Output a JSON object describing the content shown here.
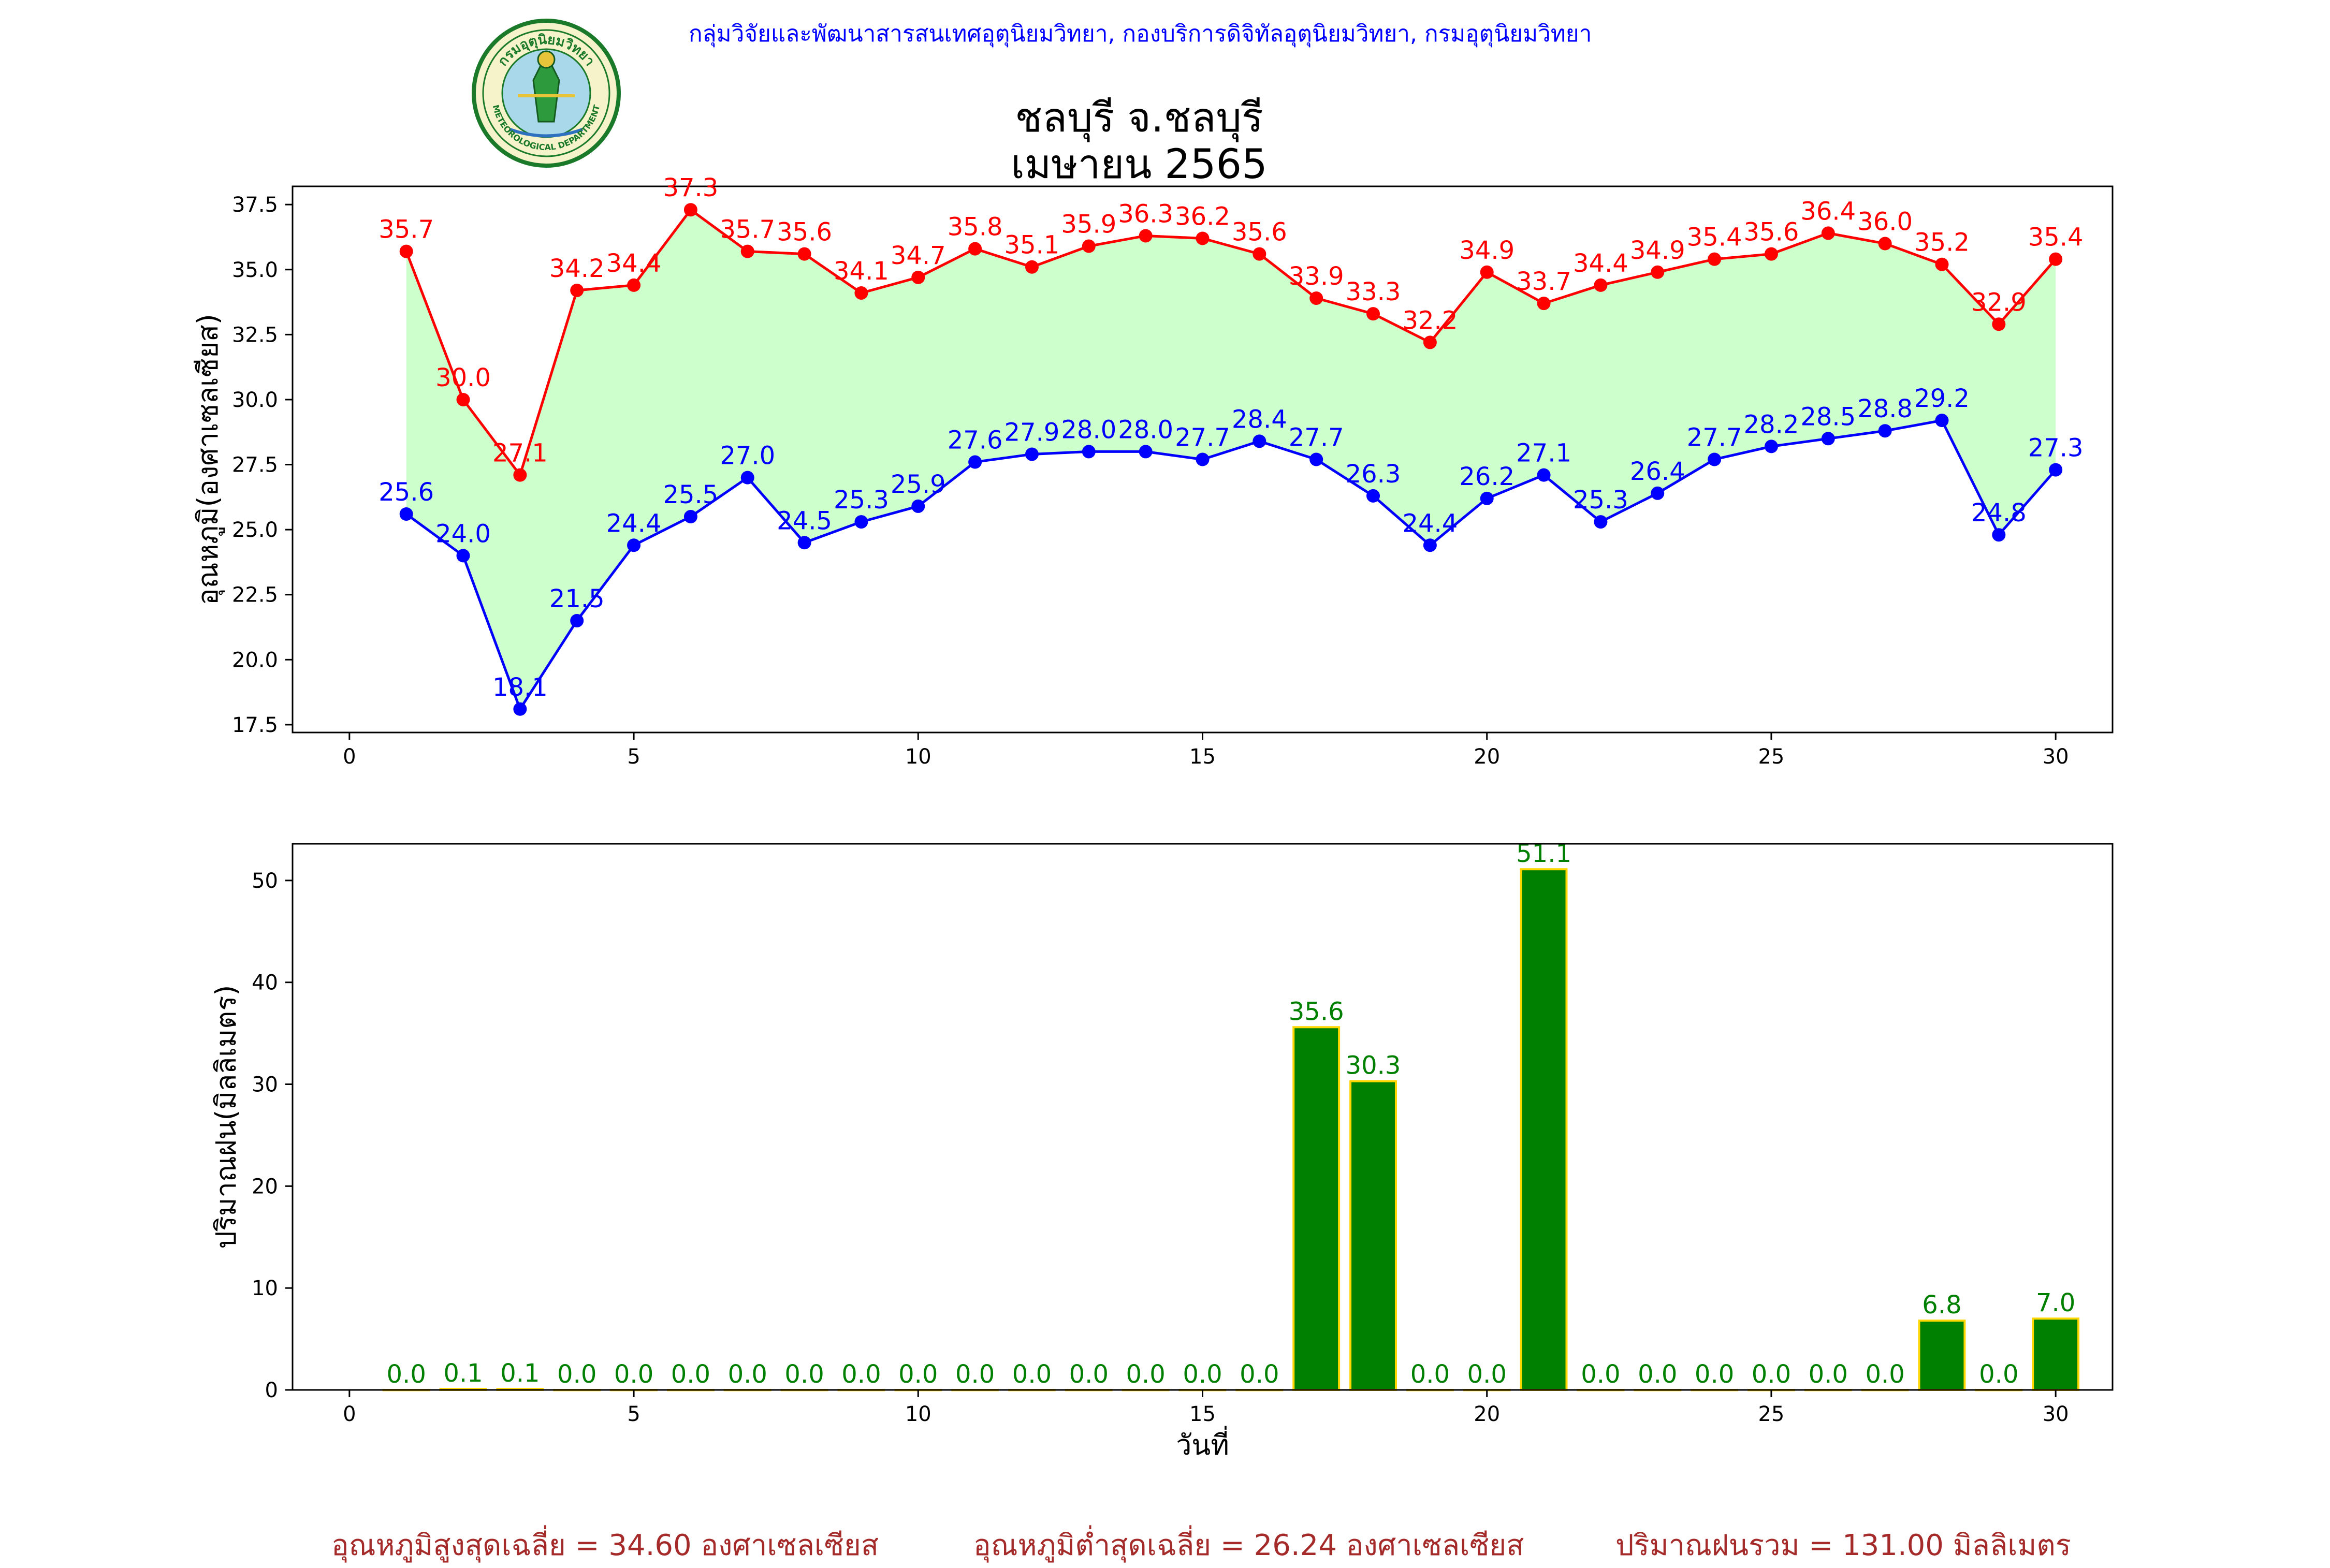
{
  "header": {
    "organization": "กลุ่มวิจัยและพัฒนาสารสนเทศอุตุนิยมวิทยา, กองบริการดิจิทัลอุตุนิยมวิทยา, กรมอุตุนิยมวิทยา",
    "title_line1": "ชลบุรี จ.ชลบุรี",
    "title_line2": "เมษายน 2565",
    "logo_text_top": "กรมอุตุนิยมวิทยา",
    "logo_text_bottom": "METEOROLOGICAL DEPARTMENT"
  },
  "summary": {
    "avg_max": "อุณหภูมิสูงสุดเฉลี่ย = 34.60 องศาเซลเซียส",
    "avg_min": "อุณหภูมิต่ำสุดเฉลี่ย = 26.24 องศาเซลเซียส",
    "total_rain": "ปริมาณฝนรวม = 131.00 มิลลิเมตร"
  },
  "colors": {
    "max": "#ff0000",
    "min": "#0000ff",
    "fill": "#ccffcc",
    "rain_bar": "#008000",
    "rain_edge": "#ffd700",
    "rain_label": "#008000",
    "header": "#0000ff",
    "summary": "#a52a2a"
  },
  "chart_data": [
    {
      "type": "line",
      "ylabel": "อุณหภูมิ(องศาเซลเซียส)",
      "xlabel": "",
      "xlim": [
        -1,
        31
      ],
      "ylim": [
        17.2,
        38.2
      ],
      "xticks": [
        0,
        5,
        10,
        15,
        20,
        25,
        30
      ],
      "yticks": [
        17.5,
        20.0,
        22.5,
        25.0,
        27.5,
        30.0,
        32.5,
        35.0,
        37.5
      ],
      "x": [
        1,
        2,
        3,
        4,
        5,
        6,
        7,
        8,
        9,
        10,
        11,
        12,
        13,
        14,
        15,
        16,
        17,
        18,
        19,
        20,
        21,
        22,
        23,
        24,
        25,
        26,
        27,
        28,
        29,
        30
      ],
      "series": [
        {
          "key": "max",
          "values": [
            35.7,
            30.0,
            27.1,
            34.2,
            34.4,
            37.3,
            35.7,
            35.6,
            34.1,
            34.7,
            35.8,
            35.1,
            35.9,
            36.3,
            36.2,
            35.6,
            33.9,
            33.3,
            32.2,
            34.9,
            33.7,
            34.4,
            34.9,
            35.4,
            35.6,
            36.4,
            36.0,
            35.2,
            32.9,
            35.4
          ]
        },
        {
          "key": "min",
          "values": [
            25.6,
            24.0,
            18.1,
            21.5,
            24.4,
            25.5,
            27.0,
            24.5,
            25.3,
            25.9,
            27.6,
            27.9,
            28.0,
            28.0,
            27.7,
            28.4,
            27.7,
            26.3,
            24.4,
            26.2,
            27.1,
            25.3,
            26.4,
            27.7,
            28.2,
            28.5,
            28.8,
            29.2,
            24.8,
            27.3
          ]
        }
      ],
      "fill_between": true,
      "grid": false
    },
    {
      "type": "bar",
      "ylabel": "ปริมาณฝน(มิลลิเมตร)",
      "xlabel": "วันที่",
      "xlim": [
        -1,
        31
      ],
      "ylim": [
        0,
        53.6
      ],
      "xticks": [
        0,
        5,
        10,
        15,
        20,
        25,
        30
      ],
      "yticks": [
        0,
        10,
        20,
        30,
        40,
        50
      ],
      "x": [
        1,
        2,
        3,
        4,
        5,
        6,
        7,
        8,
        9,
        10,
        11,
        12,
        13,
        14,
        15,
        16,
        17,
        18,
        19,
        20,
        21,
        22,
        23,
        24,
        25,
        26,
        27,
        28,
        29,
        30
      ],
      "values": [
        0.0,
        0.1,
        0.1,
        0.0,
        0.0,
        0.0,
        0.0,
        0.0,
        0.0,
        0.0,
        0.0,
        0.0,
        0.0,
        0.0,
        0.0,
        0.0,
        35.6,
        30.3,
        0.0,
        0.0,
        51.1,
        0.0,
        0.0,
        0.0,
        0.0,
        0.0,
        0.0,
        6.8,
        0.0,
        7.0
      ],
      "grid": false
    }
  ]
}
